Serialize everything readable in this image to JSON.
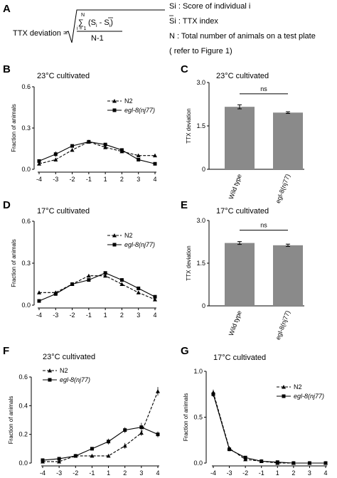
{
  "formula": {
    "panel_label": "A",
    "lhs": "TTX deviation =",
    "sum_sym": "∑",
    "sum_top": "N",
    "sum_bottom": "i = 1",
    "numerator": "(S",
    "numerator_sub1": "i",
    "numerator_mid": " - S",
    "numerator_sub2": "i",
    "numerator_end": ")",
    "denominator": "N-1",
    "legend": [
      "Si : Score of individual i",
      "Si : TTX index",
      "N : Total number of animals on a test plate",
      "( refer to Figure 1)"
    ]
  },
  "chart_data": [
    {
      "id": "B",
      "label": "B",
      "type": "line",
      "title": "23°C cultivated",
      "ylabel": "Fraction of animals",
      "xlabel": "",
      "categories": [
        "-4",
        "-3",
        "-2",
        "-1",
        "1",
        "2",
        "3",
        "4"
      ],
      "ylim": [
        0,
        0.6
      ],
      "yticks": [
        "0.0",
        "0.3",
        "0.6"
      ],
      "legend_position": "top-right",
      "series": [
        {
          "name": "N2",
          "style": "dashed-triangle",
          "values": [
            0.04,
            0.07,
            0.14,
            0.2,
            0.16,
            0.13,
            0.1,
            0.1
          ],
          "errors": [
            0.01,
            0.01,
            0.01,
            0.01,
            0.01,
            0.01,
            0.01,
            0.01
          ]
        },
        {
          "name": "egl-8(nj77)",
          "style": "solid-square",
          "values": [
            0.06,
            0.11,
            0.17,
            0.2,
            0.18,
            0.14,
            0.07,
            0.04
          ],
          "errors": [
            0.01,
            0.02,
            0.01,
            0.01,
            0.01,
            0.01,
            0.01,
            0.01
          ]
        }
      ]
    },
    {
      "id": "C",
      "label": "C",
      "type": "bar",
      "title": "23°C cultivated",
      "ylabel": "TTX deviation",
      "xlabel": "",
      "categories": [
        "Wild type",
        "egl-8(nj77)"
      ],
      "values": [
        2.16,
        1.96
      ],
      "errors": [
        0.07,
        0.03
      ],
      "ylim": [
        0,
        3.0
      ],
      "yticks": [
        "0",
        "1.5",
        "3.0"
      ],
      "significance": "ns",
      "bar_color": "#8a8a8a"
    },
    {
      "id": "D",
      "label": "D",
      "type": "line",
      "title": "17°C cultivated",
      "ylabel": "Fraction of animals",
      "xlabel": "",
      "categories": [
        "-4",
        "-3",
        "-2",
        "-1",
        "1",
        "2",
        "3",
        "4"
      ],
      "ylim": [
        0,
        0.6
      ],
      "yticks": [
        "0.0",
        "0.3",
        "0.6"
      ],
      "legend_position": "top-right",
      "series": [
        {
          "name": "N2",
          "style": "dashed-triangle",
          "values": [
            0.09,
            0.09,
            0.15,
            0.21,
            0.21,
            0.15,
            0.09,
            0.04
          ],
          "errors": [
            0.01,
            0.01,
            0.01,
            0.01,
            0.01,
            0.01,
            0.01,
            0.01
          ]
        },
        {
          "name": "egl-8(nj77)",
          "style": "solid-square",
          "values": [
            0.03,
            0.08,
            0.15,
            0.18,
            0.23,
            0.18,
            0.12,
            0.06
          ],
          "errors": [
            0.01,
            0.01,
            0.01,
            0.01,
            0.01,
            0.01,
            0.01,
            0.01
          ]
        }
      ]
    },
    {
      "id": "E",
      "label": "E",
      "type": "bar",
      "title": "17°C cultivated",
      "ylabel": "TTX deviation",
      "xlabel": "",
      "categories": [
        "Wild type",
        "egl-8(nj77)"
      ],
      "values": [
        2.21,
        2.13
      ],
      "errors": [
        0.05,
        0.04
      ],
      "ylim": [
        0,
        3.0
      ],
      "yticks": [
        "0",
        "1.5",
        "3.0"
      ],
      "significance": "ns",
      "bar_color": "#8a8a8a"
    },
    {
      "id": "F",
      "label": "F",
      "type": "line",
      "title": "23°C cultivated",
      "ylabel": "Fraction of animals",
      "xlabel": "",
      "categories": [
        "-4",
        "-3",
        "-2",
        "-1",
        "1",
        "2",
        "3",
        "4"
      ],
      "ylim": [
        0,
        0.6
      ],
      "yticks": [
        "0.0",
        "0.2",
        "0.4",
        "0.6"
      ],
      "legend_position": "top-left",
      "series": [
        {
          "name": "N2",
          "style": "dashed-triangle",
          "values": [
            0.01,
            0.01,
            0.05,
            0.05,
            0.05,
            0.12,
            0.21,
            0.5
          ],
          "errors": [
            0.01,
            0.01,
            0.01,
            0.01,
            0.01,
            0.02,
            0.02,
            0.03
          ]
        },
        {
          "name": "egl-8(nj77)",
          "style": "solid-square",
          "values": [
            0.02,
            0.03,
            0.05,
            0.1,
            0.15,
            0.23,
            0.25,
            0.2
          ],
          "errors": [
            0.01,
            0.01,
            0.01,
            0.01,
            0.02,
            0.02,
            0.03,
            0.02
          ]
        }
      ]
    },
    {
      "id": "G",
      "label": "G",
      "type": "line",
      "title": "17°C cultivated",
      "ylabel": "Fraction of animals",
      "xlabel": "",
      "categories": [
        "-4",
        "-3",
        "-2",
        "-1",
        "1",
        "2",
        "3",
        "4"
      ],
      "ylim": [
        0,
        1.0
      ],
      "yticks": [
        "0.0",
        "0.5",
        "1.0"
      ],
      "legend_position": "top-right",
      "series": [
        {
          "name": "N2",
          "style": "dashed-triangle",
          "values": [
            0.77,
            0.16,
            0.04,
            0.02,
            0.0,
            0.0,
            0.0,
            0.0
          ],
          "errors": [
            0.03,
            0.02,
            0.01,
            0.01,
            0.0,
            0.0,
            0.0,
            0.0
          ]
        },
        {
          "name": "egl-8(nj77)",
          "style": "solid-square",
          "values": [
            0.75,
            0.15,
            0.06,
            0.02,
            0.01,
            0.0,
            0.0,
            0.0
          ],
          "errors": [
            0.03,
            0.02,
            0.01,
            0.01,
            0.0,
            0.0,
            0.0,
            0.0
          ]
        }
      ]
    }
  ]
}
